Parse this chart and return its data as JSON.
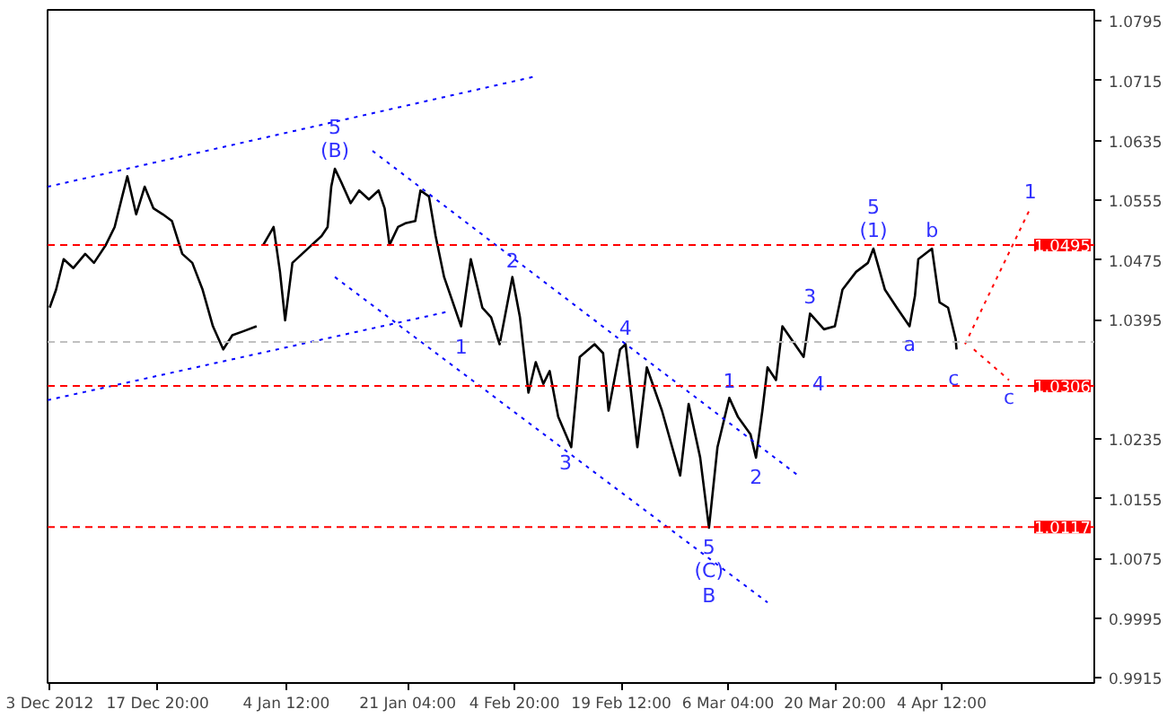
{
  "chart_data": {
    "type": "line",
    "xlim": [
      "2012-12-02T17:00",
      "2013-04-25T11:00"
    ],
    "ylim": [
      0.9908,
      1.081
    ],
    "xticks": [
      {
        "value": "2012-12-03T00:00",
        "label": "3 Dec 2012"
      },
      {
        "value": "2012-12-17T20:00",
        "label": "17 Dec 20:00"
      },
      {
        "value": "2013-01-04T12:00",
        "label": "4 Jan 12:00"
      },
      {
        "value": "2013-01-21T04:00",
        "label": "21 Jan 04:00"
      },
      {
        "value": "2013-02-04T20:00",
        "label": "4 Feb 20:00"
      },
      {
        "value": "2013-02-19T12:00",
        "label": "19 Feb 12:00"
      },
      {
        "value": "2013-03-06T04:00",
        "label": "6 Mar 04:00"
      },
      {
        "value": "2013-03-20T20:00",
        "label": "20 Mar 20:00"
      },
      {
        "value": "2013-04-04T12:00",
        "label": "4 Apr 12:00"
      }
    ],
    "yticks": [
      1.0795,
      1.0715,
      1.0635,
      1.0555,
      1.0475,
      1.0395,
      1.0235,
      1.0155,
      1.0075,
      0.9995,
      0.9915
    ],
    "series": [
      {
        "color": "#000000",
        "line_style": "solid",
        "x": [
          "2012-12-03T00:00",
          "2012-12-03T21:00",
          "2012-12-04T22:00",
          "2012-12-06T06:00",
          "2012-12-07T21:00",
          "2012-12-09T02:00",
          "2012-12-10T17:00",
          "2012-12-11T22:00",
          "2012-12-12T23:00",
          "2012-12-13T16:00",
          "2012-12-14T21:00",
          "2012-12-16T01:00",
          "2012-12-17T06:00",
          "2012-12-18T13:00",
          "2012-12-19T19:00",
          "2012-12-21T05:00",
          "2012-12-22T14:00",
          "2012-12-24T00:00",
          "2012-12-25T10:00",
          "2012-12-26T20:00",
          "2012-12-28T02:00",
          "2012-12-29T12:00",
          "2012-12-31T10:00",
          "2012-12-31T23:00",
          "2013-01-01T08:00",
          "2013-01-02T18:00",
          "2013-01-03T15:00",
          "2013-01-04T08:00",
          "2013-01-05T08:00",
          "2013-01-06T16:00",
          "2013-01-08T00:00",
          "2013-01-09T08:00",
          "2013-01-10T04:00",
          "2013-01-10T16:00",
          "2013-01-11T04:00",
          "2013-01-12T00:00",
          "2013-01-13T08:00",
          "2013-01-14T12:00",
          "2013-01-15T20:00",
          "2013-01-17T04:00",
          "2013-01-18T00:00",
          "2013-01-18T16:00",
          "2013-01-19T20:00",
          "2013-01-20T20:00",
          "2013-01-22T05:00",
          "2013-01-22T22:00",
          "2013-01-24T02:00",
          "2013-01-25T00:00",
          "2013-01-26T04:00",
          "2013-01-28T12:00",
          "2013-01-29T20:00",
          "2013-01-31T10:00",
          "2013-02-01T15:00",
          "2013-02-02T19:00",
          "2013-02-04T13:00",
          "2013-02-05T14:00",
          "2013-02-06T18:00",
          "2013-02-07T18:00",
          "2013-02-08T19:00",
          "2013-02-09T16:00",
          "2013-02-10T20:00",
          "2013-02-12T15:00",
          "2013-02-13T19:00",
          "2013-02-15T20:00",
          "2013-02-17T00:00",
          "2013-02-17T18:00",
          "2013-02-19T08:00",
          "2013-02-20T02:00",
          "2013-02-21T17:00",
          "2013-02-23T00:00",
          "2013-02-25T02:00",
          "2013-02-27T14:00",
          "2013-02-28T18:00",
          "2013-03-02T08:00",
          "2013-03-03T13:00",
          "2013-03-04T17:00",
          "2013-03-06T08:00",
          "2013-03-07T12:00",
          "2013-03-09T06:00",
          "2013-03-10T00:00",
          "2013-03-10T21:00",
          "2013-03-11T14:00",
          "2013-03-12T18:00",
          "2013-03-13T15:00",
          "2013-03-16T13:00",
          "2013-03-17T10:00",
          "2013-03-19T08:00",
          "2013-03-20T20:00",
          "2013-03-21T21:00",
          "2013-03-23T18:00",
          "2013-03-25T09:00",
          "2013-03-26T03:00",
          "2013-03-27T17:00",
          "2013-03-29T08:00",
          "2013-03-31T02:00",
          "2013-03-31T20:00",
          "2013-04-01T07:00",
          "2013-04-03T04:00",
          "2013-04-04T05:00",
          "2013-04-05T09:00",
          "2013-04-06T10:00",
          "2013-04-06T13:00"
        ],
        "values": [
          1.0411,
          1.0435,
          1.0476,
          1.0464,
          1.0483,
          1.0471,
          1.0495,
          1.0519,
          1.056,
          1.0587,
          1.0536,
          1.0573,
          1.0544,
          1.0536,
          1.0527,
          1.0483,
          1.0471,
          1.0435,
          1.0386,
          1.0355,
          1.0374,
          1.0379,
          1.0386,
          null,
          1.0495,
          1.0519,
          1.0459,
          1.0394,
          1.0471,
          1.0483,
          1.0495,
          1.0507,
          1.0519,
          1.0573,
          1.0597,
          1.058,
          1.0551,
          1.0568,
          1.0556,
          1.0568,
          1.0544,
          1.0495,
          1.0519,
          1.0524,
          1.0527,
          1.0568,
          1.056,
          1.0507,
          1.0452,
          1.0386,
          1.0476,
          1.0411,
          1.0398,
          1.0362,
          1.0452,
          1.0398,
          1.0297,
          1.0338,
          1.0309,
          1.0326,
          1.0265,
          1.0224,
          1.0345,
          1.0362,
          1.035,
          1.0273,
          1.0355,
          1.0362,
          1.0224,
          1.0331,
          1.0273,
          1.0186,
          1.0282,
          1.021,
          1.0116,
          1.0224,
          1.029,
          1.0265,
          1.0241,
          1.021,
          1.0273,
          1.0331,
          1.0314,
          1.0386,
          1.0345,
          1.0403,
          1.0382,
          1.0386,
          1.0435,
          1.0459,
          1.0471,
          1.049,
          1.0435,
          1.0411,
          1.0386,
          1.0427,
          1.0476,
          1.049,
          1.0418,
          1.0411,
          1.0369,
          1.0355
        ]
      },
      {
        "color": "#0000ff",
        "line_style": "dotted",
        "x": [
          "2012-12-02T17:00",
          "2013-02-07T08:00"
        ],
        "values": [
          1.0573,
          1.072
        ]
      },
      {
        "color": "#0000ff",
        "line_style": "dotted",
        "x": [
          "2012-12-02T17:00",
          "2013-01-26T21:00"
        ],
        "values": [
          1.0287,
          1.0406
        ]
      },
      {
        "color": "#0000ff",
        "line_style": "dotted",
        "x": [
          "2013-01-16T08:00",
          "2013-03-15T19:00"
        ],
        "values": [
          1.0621,
          1.0186
        ]
      },
      {
        "color": "#0000ff",
        "line_style": "dotted",
        "x": [
          "2013-01-11T04:00",
          "2013-03-11T14:00"
        ],
        "values": [
          1.0452,
          1.0016
        ]
      },
      {
        "color": "#ff0000",
        "line_style": "dotted",
        "x": [
          "2013-04-07T17:00",
          "2013-04-16T16:00"
        ],
        "values": [
          1.0362,
          1.0544
        ]
      },
      {
        "color": "#ff0000",
        "line_style": "dotted",
        "x": [
          "2013-04-08T22:00",
          "2013-04-13T18:00"
        ],
        "values": [
          1.0355,
          1.0314
        ]
      }
    ],
    "ref_lines": [
      {
        "axis": "y",
        "value": 1.0495,
        "label": "1.0495",
        "color": "#ff0000",
        "line_style": "dashed"
      },
      {
        "axis": "y",
        "value": 1.0306,
        "label": "1.0306",
        "color": "#ff0000",
        "line_style": "dashed"
      },
      {
        "axis": "y",
        "value": 1.0117,
        "label": "1.0117",
        "color": "#ff0000",
        "line_style": "dashed"
      },
      {
        "axis": "y",
        "value": 1.0365,
        "label": null,
        "color": "#c0c0c0",
        "line_style": "dashed"
      }
    ],
    "annotations": [
      {
        "text": "(B)",
        "x": "2013-01-11T04:00",
        "y": 1.0597
      },
      {
        "text": "5",
        "x": "2013-01-11T04:00",
        "y": 1.0597
      },
      {
        "text": "(1)",
        "x": "2013-03-26T03:00",
        "y": 1.049
      },
      {
        "text": "5",
        "x": "2013-03-26T03:00",
        "y": 1.049
      },
      {
        "text": "b",
        "x": "2013-04-03T04:00",
        "y": 1.049
      },
      {
        "text": "1",
        "x": "2013-04-16T16:00",
        "y": 1.0544
      },
      {
        "text": "3",
        "x": "2013-03-17T10:00",
        "y": 1.0403
      },
      {
        "text": "a",
        "x": "2013-03-31T02:00",
        "y": 1.0386
      },
      {
        "text": "c",
        "x": "2013-04-06T03:00",
        "y": 1.0316
      },
      {
        "text": "4",
        "x": "2013-03-18T14:00",
        "y": 1.0311
      },
      {
        "text": "c",
        "x": "2013-04-13T18:00",
        "y": 1.0314
      },
      {
        "text": "2",
        "x": "2013-02-04T13:00",
        "y": 1.0452
      },
      {
        "text": "4",
        "x": "2013-02-20T02:00",
        "y": 1.0362
      },
      {
        "text": "1",
        "x": "2013-01-28T12:00",
        "y": 1.036
      },
      {
        "text": "1",
        "x": "2013-03-06T08:00",
        "y": 1.029
      },
      {
        "text": "3",
        "x": "2013-02-11T20:00",
        "y": 1.0205
      },
      {
        "text": "2",
        "x": "2013-03-10T00:00",
        "y": 1.021
      },
      {
        "text": "5",
        "x": "2013-03-03T13:00",
        "y": 1.0116
      },
      {
        "text": "(C)",
        "x": "2013-03-03T13:00",
        "y": 1.0116
      },
      {
        "text": "B",
        "x": "2013-03-03T13:00",
        "y": 1.0116
      }
    ]
  }
}
